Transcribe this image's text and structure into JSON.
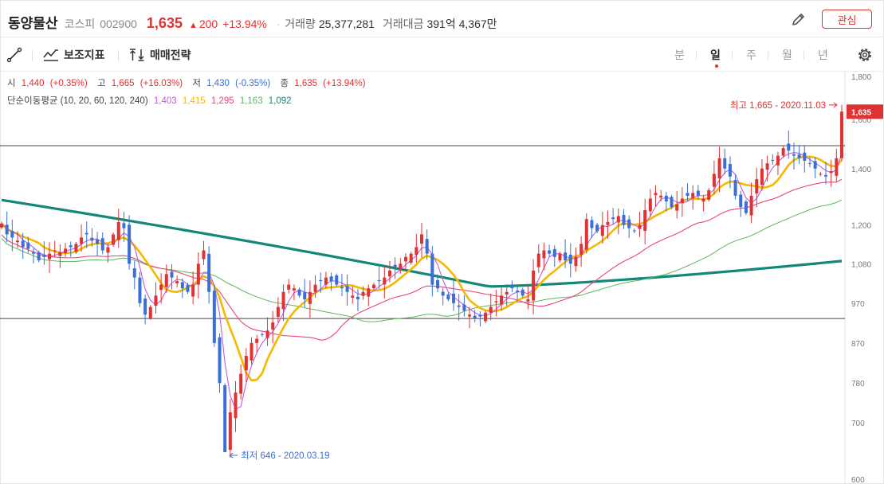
{
  "header": {
    "name": "동양물산",
    "market": "코스피",
    "code": "002900",
    "price": "1,635",
    "change_arrow": "▲",
    "change": "200",
    "change_pct": "+13.94%",
    "volume_label": "거래량",
    "volume": "25,377,281",
    "amount_label": "거래대금",
    "amount": "391억 4,367만",
    "favorite_label": "관심"
  },
  "toolbar": {
    "indicator_label": "보조지표",
    "strategy_label": "매매전략",
    "periods": [
      "분",
      "일",
      "주",
      "월",
      "년"
    ],
    "active_period": "일"
  },
  "ohlc": {
    "open_label": "시",
    "open": "1,440",
    "open_pct": "(+0.35%)",
    "high_label": "고",
    "high": "1,665",
    "high_pct": "(+16.03%)",
    "low_label": "저",
    "low": "1,430",
    "low_pct": "(-0.35%)",
    "close_label": "종",
    "close": "1,635",
    "close_pct": "(+13.94%)"
  },
  "ma_info": {
    "label": "단순이동평균 (10, 20, 60, 120, 240)",
    "values": [
      "1,403",
      "1,415",
      "1,295",
      "1,163",
      "1,092"
    ],
    "colors": [
      "#c05ce0",
      "#f5b800",
      "#e8457a",
      "#5cb85c",
      "#13877a"
    ]
  },
  "chart_data": {
    "type": "candlestick",
    "y_scale": "log",
    "ylim": [
      600,
      1800
    ],
    "y_ticks": [
      "1,800",
      "1,600",
      "1,400",
      "1,200",
      "1,080",
      "970",
      "870",
      "780",
      "700",
      "600"
    ],
    "max_annotation": "최고 1,665 - 2020.11.03",
    "min_annotation": "최저 646 - 2020.03.19",
    "current_price_label": "1,635",
    "horizontal_lines": [
      1490,
      930
    ],
    "colors": {
      "up": "#e03232",
      "down": "#3a6fd8"
    },
    "closes": [
      1205,
      1170,
      1160,
      1150,
      1130,
      1125,
      1110,
      1090,
      1100,
      1110,
      1120,
      1115,
      1125,
      1130,
      1140,
      1160,
      1170,
      1150,
      1140,
      1120,
      1130,
      1170,
      1210,
      1190,
      1080,
      1040,
      970,
      940,
      960,
      990,
      1020,
      1050,
      1040,
      1030,
      1010,
      1000,
      1020,
      1080,
      1120,
      1000,
      870,
      780,
      646,
      720,
      760,
      800,
      840,
      870,
      880,
      890,
      900,
      920,
      960,
      1000,
      1020,
      1010,
      990,
      980,
      1000,
      1020,
      1030,
      1040,
      1030,
      1020,
      1010,
      1000,
      990,
      980,
      1000,
      1010,
      1020,
      1030,
      1040,
      1060,
      1070,
      1080,
      1100,
      1110,
      1130,
      1170,
      1110,
      1020,
      1010,
      990,
      980,
      970,
      960,
      950,
      940,
      930,
      935,
      945,
      960,
      975,
      990,
      1000,
      1010,
      1000,
      990,
      980,
      1060,
      1110,
      1120,
      1110,
      1100,
      1110,
      1090,
      1080,
      1100,
      1140,
      1220,
      1190,
      1180,
      1200,
      1210,
      1220,
      1230,
      1200,
      1190,
      1180,
      1200,
      1250,
      1290,
      1310,
      1300,
      1280,
      1260,
      1270,
      1290,
      1300,
      1310,
      1300,
      1290,
      1320,
      1380,
      1440,
      1400,
      1370,
      1300,
      1260,
      1240,
      1300,
      1360,
      1400,
      1420,
      1430,
      1450,
      1480,
      1470,
      1450,
      1440,
      1430,
      1420,
      1400,
      1380,
      1370,
      1390,
      1440,
      1635
    ]
  }
}
